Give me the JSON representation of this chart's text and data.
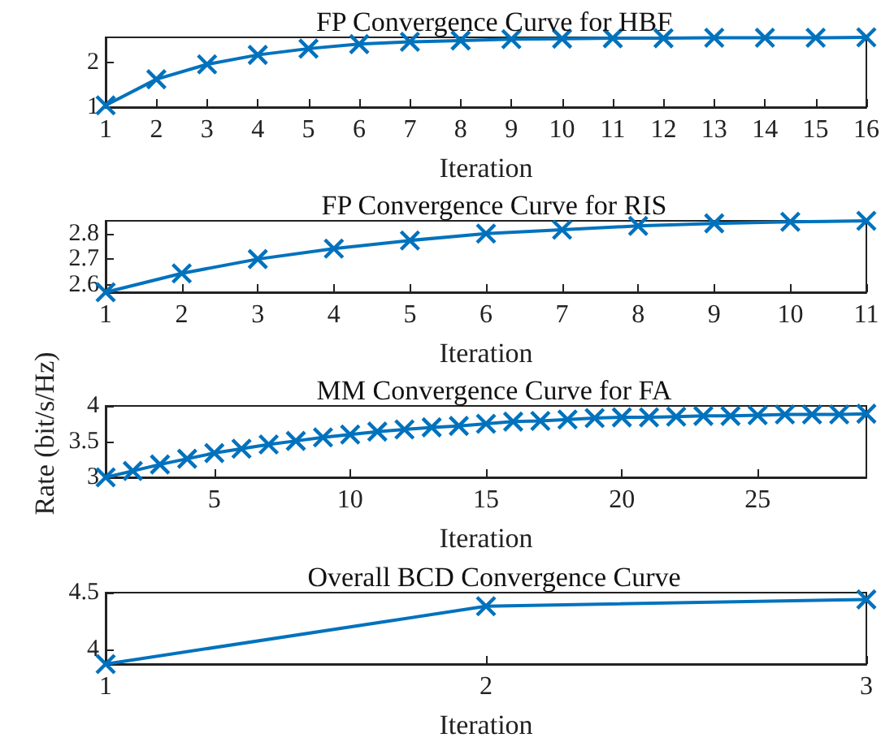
{
  "chart_data": [
    {
      "type": "line",
      "title": "FP Convergence Curve for HBF",
      "xlabel": "Iteration",
      "x": [
        1,
        2,
        3,
        4,
        5,
        6,
        7,
        8,
        9,
        10,
        11,
        12,
        13,
        14,
        15,
        16
      ],
      "xlim": [
        1,
        16
      ],
      "xticks": [
        1,
        2,
        3,
        4,
        5,
        6,
        7,
        8,
        9,
        10,
        11,
        12,
        13,
        14,
        15,
        16
      ],
      "ylim": [
        1,
        2.55
      ],
      "yticks": [
        1,
        2
      ],
      "grid": false,
      "marker": "cross",
      "line_style": "solid",
      "series": [
        {
          "color": "#0072bd",
          "values": [
            1.04,
            1.62,
            1.95,
            2.16,
            2.3,
            2.4,
            2.45,
            2.48,
            2.51,
            2.52,
            2.53,
            2.53,
            2.54,
            2.54,
            2.54,
            2.55
          ]
        }
      ]
    },
    {
      "type": "line",
      "title": "FP Convergence Curve for RIS",
      "xlabel": "Iteration",
      "x": [
        1,
        2,
        3,
        4,
        5,
        6,
        7,
        8,
        9,
        10,
        11
      ],
      "xlim": [
        1,
        11
      ],
      "xticks": [
        1,
        2,
        3,
        4,
        5,
        6,
        7,
        8,
        9,
        10,
        11
      ],
      "ylim": [
        2.57,
        2.85
      ],
      "yticks": [
        2.6,
        2.7,
        2.8
      ],
      "grid": false,
      "marker": "cross",
      "line_style": "solid",
      "series": [
        {
          "color": "#0072bd",
          "values": [
            2.57,
            2.644,
            2.7,
            2.741,
            2.773,
            2.8,
            2.815,
            2.83,
            2.84,
            2.846,
            2.85
          ]
        }
      ]
    },
    {
      "type": "line",
      "title": "MM Convergence Curve for FA",
      "xlabel": "Iteration",
      "ylabel": "Rate (bit/s/Hz)",
      "x": [
        1,
        2,
        3,
        4,
        5,
        6,
        7,
        8,
        9,
        10,
        11,
        12,
        13,
        14,
        15,
        16,
        17,
        18,
        19,
        20,
        21,
        22,
        23,
        24,
        25,
        26,
        27,
        28,
        29
      ],
      "xlim": [
        1,
        29
      ],
      "xticks": [
        5,
        10,
        15,
        20,
        25
      ],
      "ylim": [
        3,
        4
      ],
      "yticks": [
        3,
        3.5,
        4
      ],
      "grid": false,
      "marker": "cross",
      "line_style": "solid",
      "series": [
        {
          "color": "#0072bd",
          "values": [
            3.0,
            3.09,
            3.18,
            3.26,
            3.34,
            3.4,
            3.46,
            3.51,
            3.56,
            3.6,
            3.64,
            3.67,
            3.7,
            3.72,
            3.75,
            3.78,
            3.79,
            3.81,
            3.83,
            3.84,
            3.84,
            3.85,
            3.86,
            3.86,
            3.87,
            3.88,
            3.88,
            3.88,
            3.89
          ]
        }
      ]
    },
    {
      "type": "line",
      "title": "Overall BCD Convergence Curve",
      "xlabel": "Iteration",
      "x": [
        1,
        2,
        3
      ],
      "xlim": [
        1,
        3
      ],
      "xticks": [
        1,
        2,
        3
      ],
      "ylim": [
        3.87,
        4.5
      ],
      "yticks": [
        4,
        4.5
      ],
      "grid": false,
      "marker": "cross",
      "line_style": "solid",
      "series": [
        {
          "color": "#0072bd",
          "values": [
            3.87,
            4.38,
            4.44
          ]
        }
      ]
    }
  ]
}
